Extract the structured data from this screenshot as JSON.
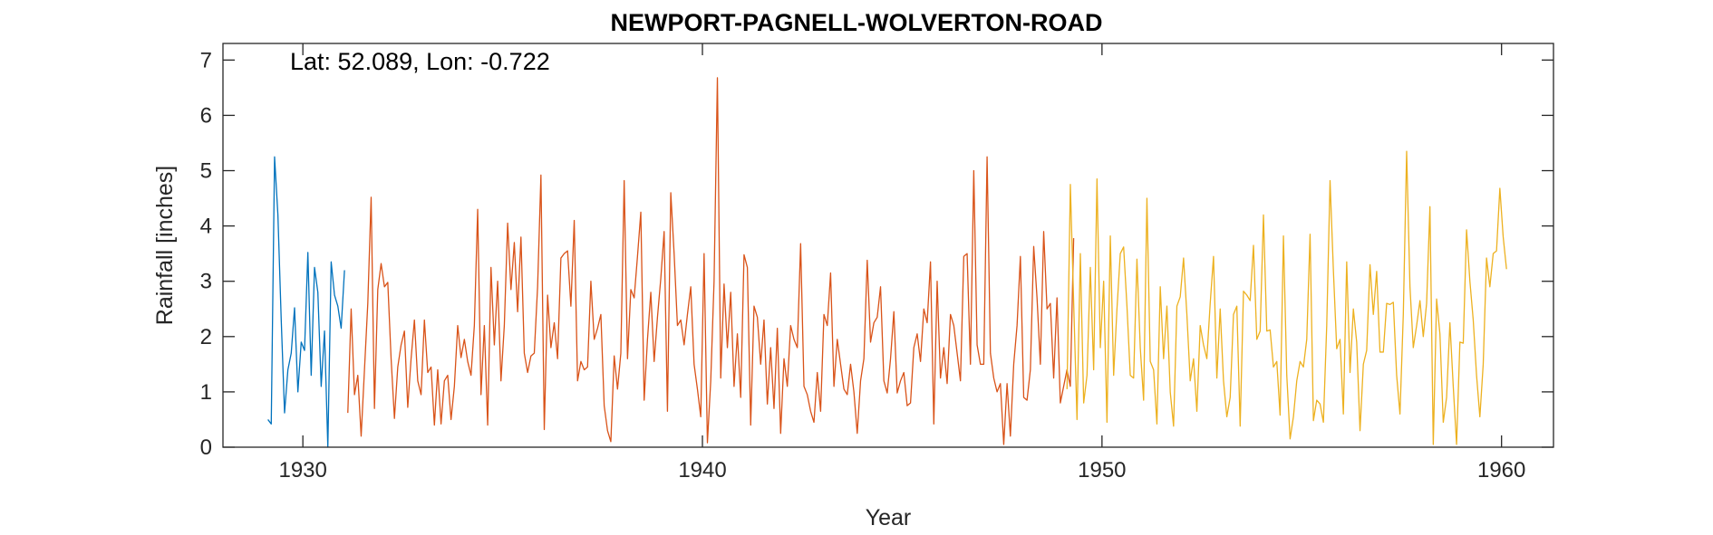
{
  "chart_data": {
    "type": "line",
    "title": "NEWPORT-PAGNELL-WOLVERTON-ROAD",
    "annotation": "Lat: 52.089, Lon: -0.722",
    "xlabel": "Year",
    "ylabel": "Rainfall [inches]",
    "xlim": [
      1928,
      1961.3
    ],
    "ylim": [
      0,
      7.3
    ],
    "xticks": [
      1930,
      1940,
      1950,
      1960
    ],
    "yticks": [
      0,
      1,
      2,
      3,
      4,
      5,
      6,
      7
    ],
    "grid": false,
    "series": [
      {
        "color": "#0072BD",
        "x0": 1929.125,
        "step": 0.08333,
        "values": [
          0.5,
          0.42,
          5.25,
          4.2,
          2.3,
          0.62,
          1.4,
          1.7,
          2.52,
          1.0,
          1.9,
          1.75,
          3.52,
          1.3,
          3.25,
          2.8,
          1.1,
          2.1,
          0.0,
          3.35,
          2.75,
          2.55,
          2.15,
          3.2
        ]
      },
      {
        "color": "#D95319",
        "x0": 1931.125,
        "step": 0.08333,
        "values": [
          0.62,
          2.5,
          0.95,
          1.3,
          0.2,
          1.4,
          2.6,
          4.52,
          0.7,
          2.85,
          3.32,
          2.9,
          2.98,
          1.6,
          0.52,
          1.45,
          1.85,
          2.1,
          0.72,
          1.6,
          2.3,
          1.2,
          0.95,
          2.3,
          1.35,
          1.45,
          0.4,
          1.4,
          0.42,
          1.2,
          1.3,
          0.5,
          1.1,
          2.2,
          1.62,
          1.95,
          1.55,
          1.3,
          2.2,
          4.3,
          0.95,
          2.2,
          0.4,
          3.25,
          1.85,
          3.0,
          1.2,
          2.2,
          4.05,
          2.85,
          3.7,
          2.45,
          3.8,
          1.7,
          1.35,
          1.65,
          1.7,
          2.9,
          4.92,
          0.32,
          2.75,
          1.8,
          2.25,
          1.6,
          3.42,
          3.5,
          3.55,
          2.55,
          4.1,
          1.2,
          1.55,
          1.4,
          1.45,
          3.0,
          1.95,
          2.15,
          2.4,
          0.75,
          0.3,
          0.1,
          1.65,
          1.05,
          1.7,
          4.82,
          1.6,
          2.85,
          2.7,
          3.45,
          4.25,
          0.85,
          1.95,
          2.8,
          1.55,
          2.35,
          3.05,
          3.9,
          0.65,
          4.6,
          3.5,
          2.2,
          2.3,
          1.85,
          2.4,
          2.9,
          1.5,
          1.05,
          0.55,
          3.5,
          0.08,
          1.2,
          3.0,
          6.68,
          1.25,
          2.95,
          1.8,
          2.8,
          1.1,
          2.05,
          0.9,
          3.48,
          3.25,
          0.4,
          2.55,
          2.35,
          1.5,
          2.3,
          0.78,
          1.8,
          0.7,
          2.15,
          0.25,
          1.6,
          1.1,
          2.2,
          1.95,
          1.8,
          3.68,
          1.1,
          0.95,
          0.65,
          0.45,
          1.35,
          0.65,
          2.4,
          2.2,
          3.15,
          1.1,
          1.95,
          1.5,
          1.05,
          0.95,
          1.5,
          1.0,
          0.25,
          1.2,
          1.6,
          3.38,
          1.9,
          2.25,
          2.35,
          2.9,
          1.2,
          0.98,
          1.6,
          2.45,
          0.98,
          1.2,
          1.35,
          0.75,
          0.8,
          1.8,
          2.05,
          1.55,
          2.5,
          2.25,
          3.35,
          0.42,
          3.0,
          1.25,
          1.8,
          1.15,
          2.4,
          2.2,
          1.7,
          1.2,
          3.45,
          3.5,
          1.5,
          5.0,
          1.85,
          1.5,
          1.5,
          5.25,
          1.7,
          1.25,
          1.0,
          1.15,
          0.05,
          1.15,
          0.2,
          1.5,
          2.2,
          3.45,
          0.9,
          0.85,
          1.4,
          3.63,
          2.7,
          1.5,
          3.9,
          2.5,
          2.6,
          1.25,
          2.7,
          0.8,
          1.1,
          1.4,
          1.1,
          3.78
        ]
      },
      {
        "color": "#EDB120",
        "x0": 1949.125,
        "step": 0.08333,
        "values": [
          1.05,
          4.75,
          2.6,
          0.5,
          3.5,
          0.8,
          1.3,
          3.25,
          1.4,
          4.85,
          1.8,
          3.0,
          0.45,
          3.82,
          1.3,
          2.5,
          3.5,
          3.62,
          2.55,
          1.3,
          1.25,
          3.4,
          1.8,
          0.85,
          4.5,
          1.55,
          1.4,
          0.42,
          2.9,
          1.6,
          2.55,
          1.0,
          0.38,
          2.55,
          2.72,
          3.42,
          2.4,
          1.2,
          1.6,
          0.65,
          2.2,
          1.85,
          1.6,
          2.6,
          3.45,
          1.25,
          2.5,
          1.2,
          0.55,
          0.9,
          2.4,
          2.55,
          0.38,
          2.82,
          2.75,
          2.65,
          3.65,
          1.95,
          2.1,
          4.2,
          2.1,
          2.12,
          1.45,
          1.55,
          0.58,
          3.82,
          1.3,
          0.15,
          0.55,
          1.2,
          1.55,
          1.45,
          1.95,
          3.85,
          0.48,
          0.85,
          0.78,
          0.45,
          2.2,
          4.82,
          3.2,
          1.78,
          1.95,
          0.6,
          3.35,
          1.35,
          2.5,
          1.9,
          0.3,
          1.5,
          1.75,
          3.3,
          2.4,
          3.18,
          1.72,
          1.72,
          2.6,
          2.58,
          2.62,
          1.3,
          0.6,
          2.4,
          5.35,
          2.9,
          1.8,
          2.2,
          2.65,
          2.0,
          2.6,
          4.35,
          0.05,
          2.68,
          2.05,
          0.45,
          0.9,
          2.25,
          1.1,
          0.05,
          1.9,
          1.88,
          3.93,
          3.0,
          2.3,
          1.3,
          0.55,
          1.5,
          3.42,
          2.9,
          3.5,
          3.55,
          4.68,
          3.8,
          3.22
        ]
      }
    ]
  }
}
